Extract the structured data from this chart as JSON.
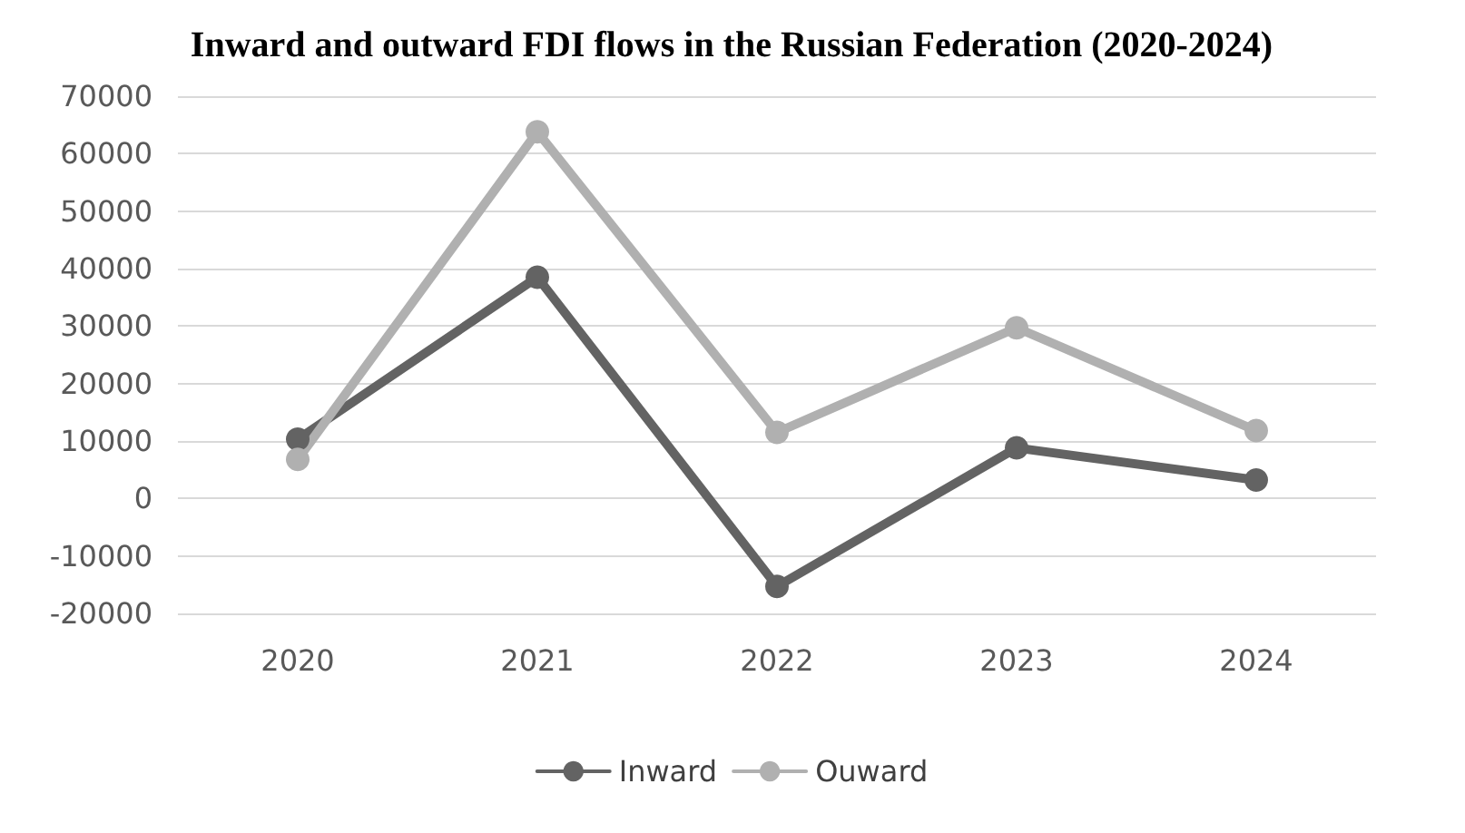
{
  "chart_data": {
    "type": "line",
    "title": "Inward and outward FDI flows in the Russian Federation (2020-2024)",
    "categories": [
      "2020",
      "2021",
      "2022",
      "2023",
      "2024"
    ],
    "series": [
      {
        "name": "Inward",
        "color": "#636363",
        "values": [
          10300,
          38500,
          -15300,
          8800,
          3200
        ]
      },
      {
        "name": "Ouward",
        "color": "#b0b0b0",
        "values": [
          6800,
          63800,
          11500,
          29700,
          11800
        ]
      }
    ],
    "ylim": [
      -20000,
      70000
    ],
    "yticks": [
      -20000,
      -10000,
      0,
      10000,
      20000,
      30000,
      40000,
      50000,
      60000,
      70000
    ],
    "grid": "y",
    "legend": "bottom",
    "marker": "circle",
    "line_style": "solid"
  }
}
